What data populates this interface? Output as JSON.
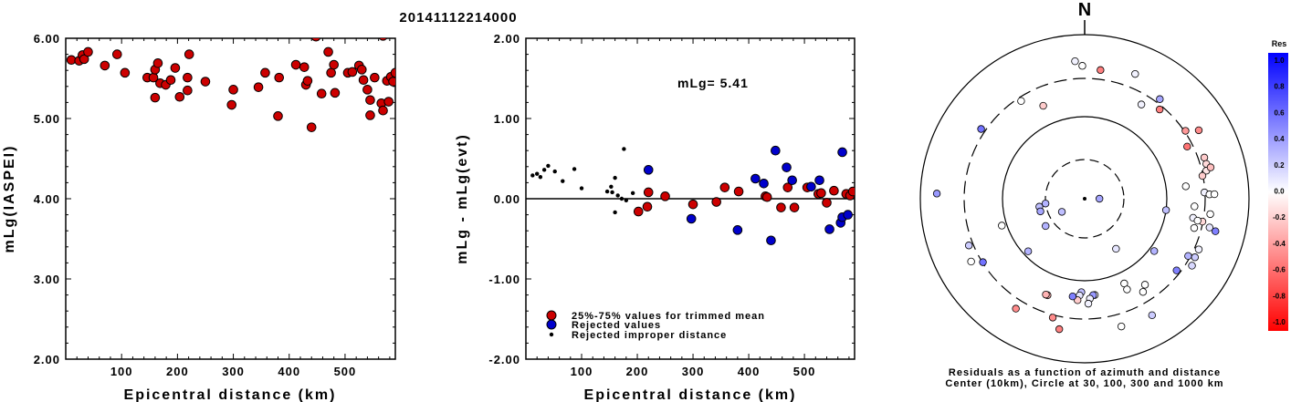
{
  "figure_title": "20141112214000",
  "chart_data": [
    {
      "type": "scatter",
      "xlabel": "Epicentral distance (km)",
      "ylabel": "mLg(IASPEI)",
      "xlim": [
        0,
        590
      ],
      "ylim": [
        2.0,
        6.0
      ],
      "xticks": [
        "100",
        "200",
        "300",
        "400",
        "500"
      ],
      "yticks": [
        "2.00",
        "3.00",
        "4.00",
        "5.00",
        "6.00"
      ],
      "series": [
        {
          "points": [
            [
              10,
              5.73
            ],
            [
              24,
              5.72
            ],
            [
              30,
              5.79
            ],
            [
              33,
              5.74
            ],
            [
              40,
              5.83
            ],
            [
              70,
              5.66
            ],
            [
              92,
              5.8
            ],
            [
              106,
              5.57
            ],
            [
              146,
              5.51
            ],
            [
              157,
              5.51
            ],
            [
              160,
              5.61
            ],
            [
              160,
              5.26
            ],
            [
              165,
              5.69
            ],
            [
              169,
              5.44
            ],
            [
              179,
              5.42
            ],
            [
              188,
              5.48
            ],
            [
              196,
              5.63
            ],
            [
              204,
              5.27
            ],
            [
              218,
              5.35
            ],
            [
              218,
              5.51
            ],
            [
              221,
              5.8
            ],
            [
              250,
              5.46
            ],
            [
              297,
              5.17
            ],
            [
              300,
              5.36
            ],
            [
              345,
              5.39
            ],
            [
              357,
              5.57
            ],
            [
              380,
              5.03
            ],
            [
              382,
              5.51
            ],
            [
              412,
              5.67
            ],
            [
              427,
              5.64
            ],
            [
              430,
              5.42
            ],
            [
              433,
              5.47
            ],
            [
              440,
              4.89
            ],
            [
              448,
              6.02
            ],
            [
              458,
              5.31
            ],
            [
              470,
              5.83
            ],
            [
              475,
              5.57
            ],
            [
              480,
              5.67
            ],
            [
              482,
              5.32
            ],
            [
              505,
              5.57
            ],
            [
              513,
              5.58
            ],
            [
              525,
              5.66
            ],
            [
              530,
              5.61
            ],
            [
              533,
              5.48
            ],
            [
              540,
              5.36
            ],
            [
              545,
              5.23
            ],
            [
              545,
              5.04
            ],
            [
              553,
              5.51
            ],
            [
              565,
              5.19
            ],
            [
              568,
              5.1
            ],
            [
              568,
              6.03
            ],
            [
              575,
              5.47
            ],
            [
              578,
              5.21
            ],
            [
              582,
              5.52
            ],
            [
              586,
              5.46
            ],
            [
              590,
              5.57
            ]
          ]
        }
      ]
    },
    {
      "type": "scatter",
      "xlabel": "Epicentral distance (km)",
      "ylabel": "mLg - mLg(evt)",
      "xlim": [
        0,
        590
      ],
      "ylim": [
        -2.0,
        2.0
      ],
      "xticks": [
        "100",
        "200",
        "300",
        "400",
        "500"
      ],
      "yticks": [
        "-2.00",
        "-1.00",
        "0.00",
        "1.00",
        "2.00"
      ],
      "reference_line": 0.0,
      "annotation": "mLg= 5.41",
      "legend_position": "bottom-left",
      "series": [
        {
          "name": "25%-75% values for trimmed mean",
          "color": "#cc0000",
          "points": [
            [
              202,
              -0.16
            ],
            [
              218,
              -0.1
            ],
            [
              220,
              0.08
            ],
            [
              250,
              0.03
            ],
            [
              300,
              -0.07
            ],
            [
              342,
              -0.04
            ],
            [
              357,
              0.14
            ],
            [
              382,
              0.09
            ],
            [
              430,
              0.03
            ],
            [
              433,
              0.02
            ],
            [
              458,
              -0.11
            ],
            [
              470,
              0.14
            ],
            [
              482,
              -0.11
            ],
            [
              505,
              0.14
            ],
            [
              525,
              0.06
            ],
            [
              530,
              0.07
            ],
            [
              540,
              -0.05
            ],
            [
              553,
              0.1
            ],
            [
              575,
              0.06
            ],
            [
              582,
              0.04
            ],
            [
              587,
              0.09
            ]
          ]
        },
        {
          "name": "Rejected values",
          "color": "#0000cc",
          "points": [
            [
              220,
              0.36
            ],
            [
              297,
              -0.25
            ],
            [
              380,
              -0.39
            ],
            [
              412,
              0.25
            ],
            [
              427,
              0.19
            ],
            [
              440,
              -0.52
            ],
            [
              448,
              0.6
            ],
            [
              468,
              0.39
            ],
            [
              478,
              0.23
            ],
            [
              512,
              0.15
            ],
            [
              527,
              0.23
            ],
            [
              545,
              -0.38
            ],
            [
              565,
              -0.3
            ],
            [
              568,
              0.58
            ],
            [
              568,
              -0.23
            ],
            [
              578,
              -0.2
            ]
          ]
        },
        {
          "name": "Rejected improper distance",
          "color": "#000000",
          "points": [
            [
              12,
              0.29
            ],
            [
              20,
              0.31
            ],
            [
              26,
              0.27
            ],
            [
              33,
              0.36
            ],
            [
              40,
              0.41
            ],
            [
              52,
              0.34
            ],
            [
              66,
              0.22
            ],
            [
              87,
              0.37
            ],
            [
              100,
              0.13
            ],
            [
              146,
              0.09
            ],
            [
              153,
              0.15
            ],
            [
              155,
              0.08
            ],
            [
              160,
              -0.17
            ],
            [
              160,
              0.26
            ],
            [
              165,
              0.04
            ],
            [
              172,
              0.0
            ],
            [
              176,
              0.62
            ],
            [
              180,
              -0.02
            ],
            [
              192,
              0.07
            ]
          ]
        }
      ]
    }
  ],
  "polar_plot": {
    "north_label": "N",
    "caption_line1": "Residuals as a function of azimuth and distance",
    "caption_line2": "Center (10km), Circle at 30, 100, 300 and 1000 km",
    "colorbar": {
      "title": "Res",
      "labels": [
        "1.0",
        "0.8",
        "0.6",
        "0.4",
        "0.2",
        "0.0",
        "-0.2",
        "-0.4",
        "-0.6",
        "-0.8",
        "-1.0"
      ]
    },
    "stations": [
      {
        "r": 0.84,
        "az": 356,
        "res": 0.05
      },
      {
        "r": 0.81,
        "az": 359,
        "res": 0.0
      },
      {
        "r": 0.79,
        "az": 7,
        "res": -0.5
      },
      {
        "r": 0.82,
        "az": 22,
        "res": 0.05
      },
      {
        "r": 0.76,
        "az": 37,
        "res": 0.35
      },
      {
        "r": 0.67,
        "az": 31,
        "res": 0.05
      },
      {
        "r": 0.81,
        "az": 59,
        "res": -0.45
      },
      {
        "r": 0.74,
        "az": 56,
        "res": -0.4
      },
      {
        "r": 0.71,
        "az": 40,
        "res": -0.5
      },
      {
        "r": 0.7,
        "az": 63,
        "res": -0.55
      },
      {
        "r": 0.77,
        "az": 71,
        "res": -0.2
      },
      {
        "r": 0.77,
        "az": 74,
        "res": -0.15
      },
      {
        "r": 0.62,
        "az": 83,
        "res": 0.0
      },
      {
        "r": 0.76,
        "az": 77,
        "res": -0.1
      },
      {
        "r": 0.79,
        "az": 76,
        "res": -0.25
      },
      {
        "r": 0.73,
        "az": 79,
        "res": -0.2
      },
      {
        "r": 0.73,
        "az": 87,
        "res": 0.05
      },
      {
        "r": 0.76,
        "az": 88,
        "res": 0.0
      },
      {
        "r": 0.79,
        "az": 88,
        "res": 0.0
      },
      {
        "r": 0.67,
        "az": 94,
        "res": 0.0
      },
      {
        "r": 0.77,
        "az": 97,
        "res": 0.0
      },
      {
        "r": 0.67,
        "az": 100,
        "res": 0.05
      },
      {
        "r": 0.73,
        "az": 101,
        "res": -0.15
      },
      {
        "r": 0.7,
        "az": 101,
        "res": 0.0
      },
      {
        "r": 0.78,
        "az": 103,
        "res": 0.1
      },
      {
        "r": 0.82,
        "az": 104,
        "res": 0.5
      },
      {
        "r": 0.5,
        "az": 98,
        "res": 0.25
      },
      {
        "r": 0.69,
        "az": 105,
        "res": 0.0
      },
      {
        "r": 0.76,
        "az": 114,
        "res": 0.05
      },
      {
        "r": 0.72,
        "az": 119,
        "res": 0.3
      },
      {
        "r": 0.76,
        "az": 118,
        "res": 0.2
      },
      {
        "r": 0.77,
        "az": 122,
        "res": 0.15
      },
      {
        "r": 0.71,
        "az": 128,
        "res": 0.5
      },
      {
        "r": 0.53,
        "az": 127,
        "res": 0.3
      },
      {
        "r": 0.64,
        "az": 145,
        "res": 0.0
      },
      {
        "r": 0.67,
        "az": 148,
        "res": 0.0
      },
      {
        "r": 0.57,
        "az": 155,
        "res": 0.0
      },
      {
        "r": 0.61,
        "az": 155,
        "res": 0.0
      },
      {
        "r": 0.36,
        "az": 148,
        "res": 0.1
      },
      {
        "r": 0.82,
        "az": 150,
        "res": 0.2
      },
      {
        "r": 0.81,
        "az": 164,
        "res": 0.0
      },
      {
        "r": 0.59,
        "az": 174,
        "res": 0.0
      },
      {
        "r": 0.59,
        "az": 175,
        "res": 0.4
      },
      {
        "r": 0.61,
        "az": 177,
        "res": 0.05
      },
      {
        "r": 0.64,
        "az": 178,
        "res": 0.05
      },
      {
        "r": 0.57,
        "az": 182,
        "res": 0.25
      },
      {
        "r": 0.59,
        "az": 183,
        "res": 0.1
      },
      {
        "r": 0.62,
        "az": 184,
        "res": -0.2
      },
      {
        "r": 0.6,
        "az": 187,
        "res": 0.5
      },
      {
        "r": 0.81,
        "az": 191,
        "res": -0.5
      },
      {
        "r": 0.75,
        "az": 195,
        "res": -0.45
      },
      {
        "r": 0.63,
        "az": 201,
        "res": -0.3
      },
      {
        "r": 0.63,
        "az": 202,
        "res": -0.3
      },
      {
        "r": 0.79,
        "az": 212,
        "res": -0.45
      },
      {
        "r": 0.73,
        "az": 238,
        "res": 0.55
      },
      {
        "r": 0.79,
        "az": 241,
        "res": 0.0
      },
      {
        "r": 0.47,
        "az": 227,
        "res": 0.3
      },
      {
        "r": 0.76,
        "az": 248,
        "res": 0.2
      },
      {
        "r": 0.53,
        "az": 252,
        "res": 0.0
      },
      {
        "r": 0.29,
        "az": 235,
        "res": 0.3
      },
      {
        "r": 0.24,
        "az": 263,
        "res": 0.3
      },
      {
        "r": 0.28,
        "az": 260,
        "res": 0.25
      },
      {
        "r": 0.28,
        "az": 254,
        "res": 0.35
      },
      {
        "r": 0.16,
        "az": 240,
        "res": 0.25
      },
      {
        "r": 0.09,
        "az": 90,
        "res": 0.35
      },
      {
        "r": 0.9,
        "az": 272,
        "res": 0.4
      },
      {
        "r": 0.76,
        "az": 304,
        "res": 0.55
      },
      {
        "r": 0.71,
        "az": 327,
        "res": 0.0
      },
      {
        "r": 0.62,
        "az": 336,
        "res": -0.2
      }
    ]
  }
}
